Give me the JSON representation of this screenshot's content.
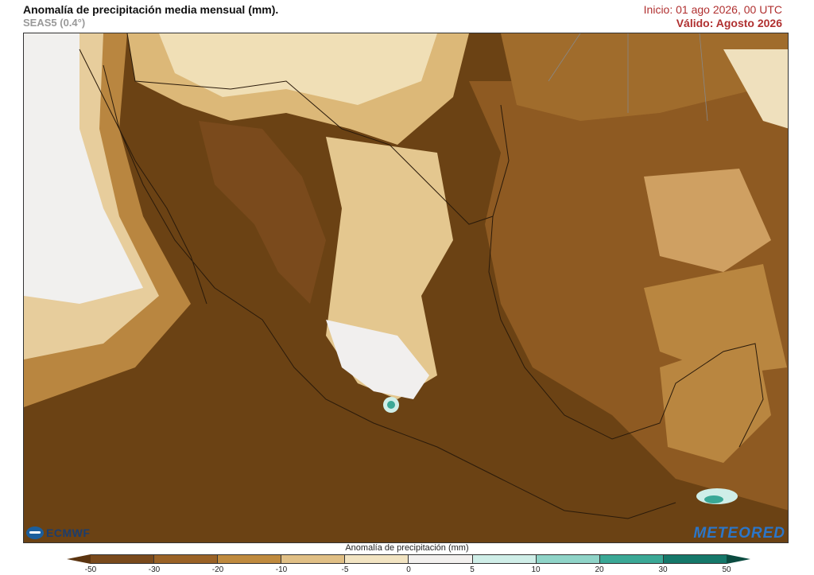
{
  "header": {
    "title": "Anomalía de precipitación media mensual (mm).",
    "subtitle": "SEAS5 (0.4°)",
    "init": "Inicio: 01 ago 2026, 00 UTC",
    "valid": "Válido: Agosto 2026"
  },
  "logos": {
    "left": "ECMWF",
    "right": "METEORED"
  },
  "colorbar": {
    "title": "Anomalía de precipitación (mm)",
    "ticks": [
      "-50",
      "-30",
      "-20",
      "-10",
      "-5",
      "0",
      "5",
      "10",
      "20",
      "30",
      "50"
    ],
    "colors": [
      "#7a4a1c",
      "#9a6226",
      "#bf8a3e",
      "#e0bf85",
      "#f2e4c2",
      "#f2f0ee",
      "#cfeee8",
      "#8fd4c8",
      "#3aa896",
      "#15786a"
    ],
    "under_color": "#5b3410",
    "over_color": "#0b4b40"
  }
}
